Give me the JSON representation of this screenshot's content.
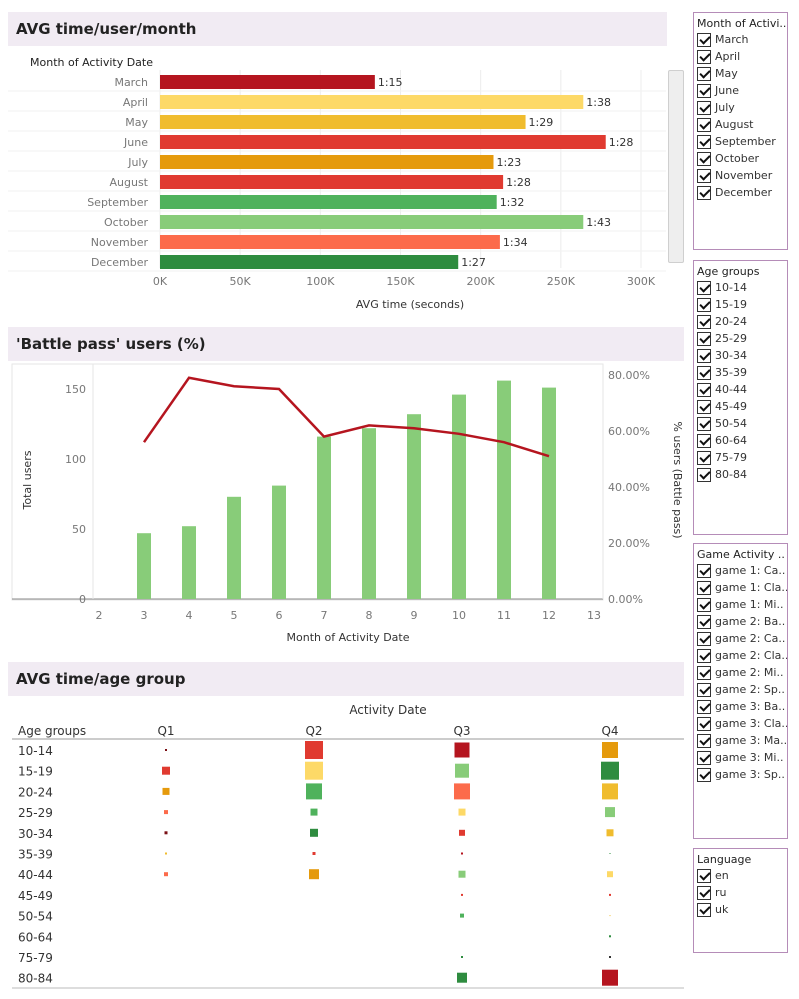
{
  "sections": {
    "avg_time_month": {
      "title": "AVG time/user/month",
      "row_header": "Month of Activity Date",
      "x_axis_title": "AVG time (seconds)"
    },
    "battle_pass": {
      "title": "'Battle pass' users (%)",
      "y_left_title": "Total users",
      "y_right_title": "% users (Battle pass)",
      "x_axis_title": "Month of Activity Date"
    },
    "avg_time_age": {
      "title": "AVG time/age group",
      "column_header": "Activity Date",
      "row_header": "Age groups"
    }
  },
  "chart_data": [
    {
      "type": "bar",
      "orientation": "horizontal",
      "categories": [
        "March",
        "April",
        "May",
        "June",
        "July",
        "August",
        "September",
        "October",
        "November",
        "December"
      ],
      "values": [
        134000,
        264000,
        228000,
        278000,
        208000,
        214000,
        210000,
        264000,
        212000,
        186000
      ],
      "data_labels": [
        "1:15",
        "1:38",
        "1:29",
        "1:28",
        "1:23",
        "1:28",
        "1:32",
        "1:43",
        "1:34",
        "1:27"
      ],
      "colors": [
        "#b5151f",
        "#fdd967",
        "#f0bc2e",
        "#e03a30",
        "#e59a0c",
        "#e03a30",
        "#4fb25c",
        "#88cc79",
        "#fc6b4b",
        "#2e8c3f"
      ],
      "xticks": [
        "0K",
        "50K",
        "100K",
        "150K",
        "200K",
        "250K",
        "300K"
      ],
      "xlim": [
        0,
        300000
      ],
      "xlabel": "AVG time (seconds)",
      "ylabel": "Month of Activity Date",
      "grid": true
    },
    {
      "type": "bar+line",
      "x": [
        3,
        4,
        5,
        6,
        7,
        8,
        9,
        10,
        11,
        12
      ],
      "bars": [
        47,
        52,
        73,
        81,
        116,
        122,
        132,
        146,
        156,
        151
      ],
      "line": [
        0.56,
        0.79,
        0.76,
        0.75,
        0.58,
        0.62,
        0.61,
        0.59,
        0.56,
        0.51
      ],
      "xticks": [
        2,
        3,
        4,
        5,
        6,
        7,
        8,
        9,
        10,
        11,
        12,
        13
      ],
      "xlim": [
        2,
        13
      ],
      "ylim_left": [
        0,
        160
      ],
      "yticks_left": [
        0,
        50,
        100,
        150
      ],
      "ylim_right": [
        0,
        0.8
      ],
      "yticks_right": [
        "0.00%",
        "20.00%",
        "40.00%",
        "60.00%",
        "80.00%"
      ],
      "bar_color": "#88cc79",
      "line_color": "#b5151f",
      "xlabel": "Month of Activity Date",
      "ylabel": "Total users",
      "ylabel_right": "% users (Battle pass)"
    },
    {
      "type": "heatmap",
      "columns": [
        "Q1",
        "Q2",
        "Q3",
        "Q4"
      ],
      "rows": [
        "10-14",
        "15-19",
        "20-24",
        "25-29",
        "30-34",
        "35-39",
        "40-44",
        "45-49",
        "50-54",
        "60-64",
        "75-79",
        "80-84"
      ],
      "cells": [
        [
          {
            "s": 2,
            "c": "#7a0f14"
          },
          {
            "s": 18,
            "c": "#e03a30"
          },
          {
            "s": 15,
            "c": "#b5151f"
          },
          {
            "s": 16,
            "c": "#e59a0c"
          }
        ],
        [
          {
            "s": 8,
            "c": "#e03a30"
          },
          {
            "s": 18,
            "c": "#fdd967"
          },
          {
            "s": 14,
            "c": "#88cc79"
          },
          {
            "s": 18,
            "c": "#2e8c3f"
          }
        ],
        [
          {
            "s": 7,
            "c": "#e59a0c"
          },
          {
            "s": 16,
            "c": "#4fb25c"
          },
          {
            "s": 16,
            "c": "#fc6b4b"
          },
          {
            "s": 16,
            "c": "#f0bc2e"
          }
        ],
        [
          {
            "s": 4,
            "c": "#fc6b4b"
          },
          {
            "s": 7,
            "c": "#4fb25c"
          },
          {
            "s": 7,
            "c": "#fdd967"
          },
          {
            "s": 10,
            "c": "#88cc79"
          }
        ],
        [
          {
            "s": 3,
            "c": "#7a0f14"
          },
          {
            "s": 8,
            "c": "#2e8c3f"
          },
          {
            "s": 6,
            "c": "#e03a30"
          },
          {
            "s": 7,
            "c": "#f0bc2e"
          }
        ],
        [
          {
            "s": 2,
            "c": "#f0bc2e"
          },
          {
            "s": 3,
            "c": "#e03a30"
          },
          {
            "s": 2,
            "c": "#b5151f"
          },
          {
            "s": 1,
            "c": "#2e8c3f"
          }
        ],
        [
          {
            "s": 4,
            "c": "#fc6b4b"
          },
          {
            "s": 10,
            "c": "#e59a0c"
          },
          {
            "s": 7,
            "c": "#88cc79"
          },
          {
            "s": 6,
            "c": "#fdd967"
          }
        ],
        [
          null,
          null,
          {
            "s": 2,
            "c": "#e03a30"
          },
          {
            "s": 2,
            "c": "#e03a30"
          }
        ],
        [
          null,
          null,
          {
            "s": 4,
            "c": "#4fb25c"
          },
          {
            "s": 1,
            "c": "#f0bc2e"
          }
        ],
        [
          null,
          null,
          null,
          {
            "s": 2,
            "c": "#2e8c3f"
          }
        ],
        [
          null,
          null,
          {
            "s": 2,
            "c": "#2e8c3f"
          },
          {
            "s": 2,
            "c": "#333333"
          }
        ],
        [
          null,
          null,
          {
            "s": 10,
            "c": "#2e8c3f"
          },
          {
            "s": 16,
            "c": "#b5151f"
          }
        ]
      ]
    }
  ],
  "filters": {
    "month": {
      "title": "Month of Activi..",
      "items": [
        "March",
        "April",
        "May",
        "June",
        "July",
        "August",
        "September",
        "October",
        "November",
        "December"
      ]
    },
    "age": {
      "title": "Age groups",
      "items": [
        "10-14",
        "15-19",
        "20-24",
        "25-29",
        "30-34",
        "35-39",
        "40-44",
        "45-49",
        "50-54",
        "60-64",
        "75-79",
        "80-84"
      ]
    },
    "game": {
      "title": "Game Activity ..",
      "items": [
        "game 1: Ca..",
        "game 1: Cla..",
        "game 1: Mi..",
        "game 2: Ba..",
        "game 2: Ca..",
        "game 2: Cla..",
        "game 2: Mi..",
        "game 2: Sp..",
        "game 3: Ba..",
        "game 3: Cla..",
        "game 3: Ma..",
        "game 3: Mi..",
        "game 3: Sp.."
      ]
    },
    "language": {
      "title": "Language",
      "items": [
        "en",
        "ru",
        "uk"
      ]
    }
  }
}
